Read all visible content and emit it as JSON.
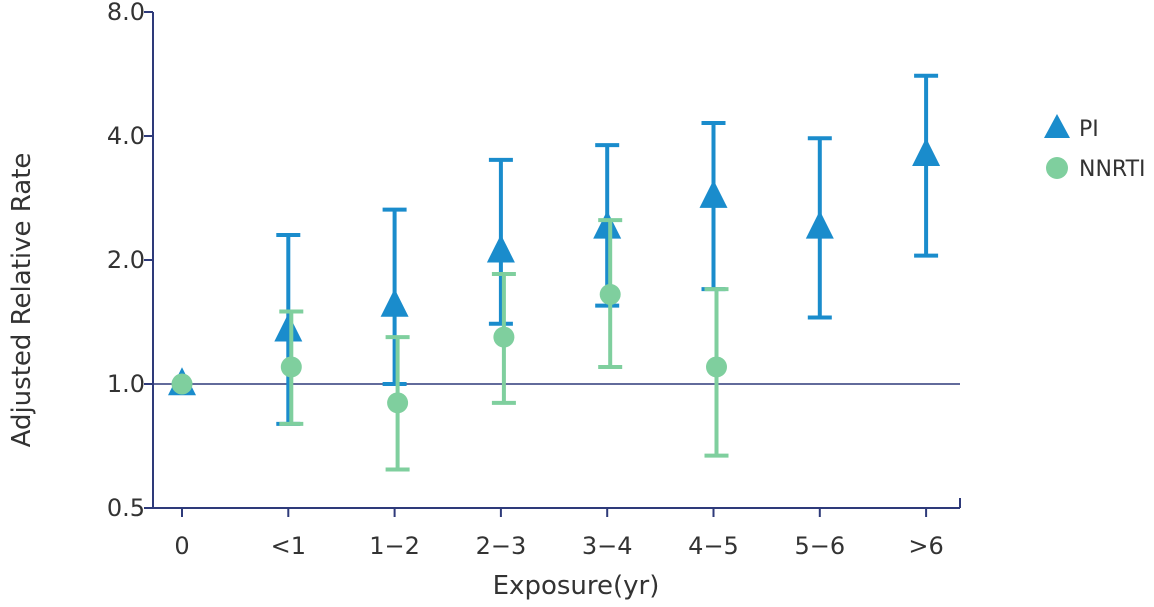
{
  "chart_data": {
    "type": "scatter",
    "xlabel": "Exposure(yr)",
    "ylabel": "Adjusted Relative Rate",
    "y_scale": "log",
    "ylim": [
      0.5,
      8.0
    ],
    "y_ticks": [
      "0.5",
      "1.0",
      "2.0",
      "4.0",
      "8.0"
    ],
    "categories": [
      "0",
      "<1",
      "1−2",
      "2−3",
      "3−4",
      "4−5",
      "5−6",
      ">6"
    ],
    "reference_line": 1.0,
    "legend_position": "right",
    "series": [
      {
        "name": "PI",
        "marker": "triangle",
        "color": "#1a8ccc",
        "points": [
          {
            "category": "0",
            "value": 1.0,
            "lower": null,
            "upper": null
          },
          {
            "category": "<1",
            "value": 1.35,
            "lower": 0.8,
            "upper": 2.3
          },
          {
            "category": "1−2",
            "value": 1.55,
            "lower": 1.0,
            "upper": 2.65
          },
          {
            "category": "2−3",
            "value": 2.1,
            "lower": 1.4,
            "upper": 3.5
          },
          {
            "category": "3−4",
            "value": 2.4,
            "lower": 1.55,
            "upper": 3.8
          },
          {
            "category": "4−5",
            "value": 2.85,
            "lower": 1.7,
            "upper": 4.3
          },
          {
            "category": "5−6",
            "value": 2.4,
            "lower": 1.45,
            "upper": 3.95
          },
          {
            "category": ">6",
            "value": 3.6,
            "lower": 2.05,
            "upper": 5.6
          }
        ]
      },
      {
        "name": "NNRTI",
        "marker": "circle",
        "color": "#7fcf9e",
        "points": [
          {
            "category": "0",
            "value": 1.0,
            "lower": null,
            "upper": null
          },
          {
            "category": "<1",
            "value": 1.1,
            "lower": 0.8,
            "upper": 1.5
          },
          {
            "category": "1−2",
            "value": 0.9,
            "lower": 0.62,
            "upper": 1.3
          },
          {
            "category": "2−3",
            "value": 1.3,
            "lower": 0.9,
            "upper": 1.85
          },
          {
            "category": "3−4",
            "value": 1.65,
            "lower": 1.1,
            "upper": 2.5
          },
          {
            "category": "4−5",
            "value": 1.1,
            "lower": 0.67,
            "upper": 1.7
          },
          {
            "category": "5−6",
            "value": null,
            "lower": null,
            "upper": null
          },
          {
            "category": ">6",
            "value": null,
            "lower": null,
            "upper": null
          }
        ]
      }
    ]
  }
}
